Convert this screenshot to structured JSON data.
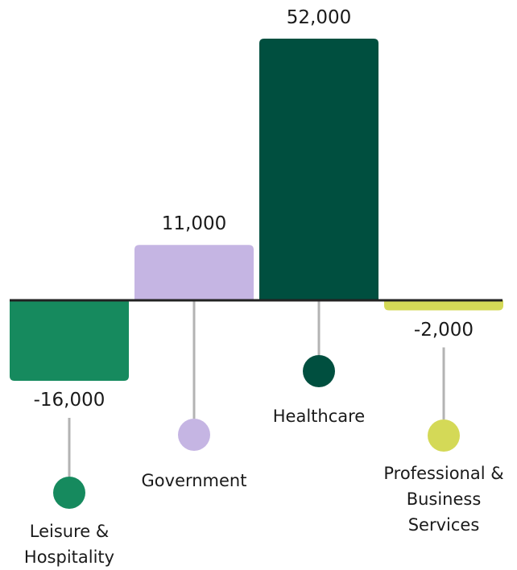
{
  "chart_data": {
    "type": "bar",
    "categories": [
      "Leisure & Hospitality",
      "Government",
      "Healthcare",
      "Professional & Business Services"
    ],
    "values": [
      -16000,
      11000,
      52000,
      -2000
    ],
    "value_labels": [
      "-16,000",
      "11,000",
      "52,000",
      "-2,000"
    ],
    "colors": [
      "#168a5e",
      "#c5b5e3",
      "#004f3f",
      "#d4d957"
    ]
  }
}
